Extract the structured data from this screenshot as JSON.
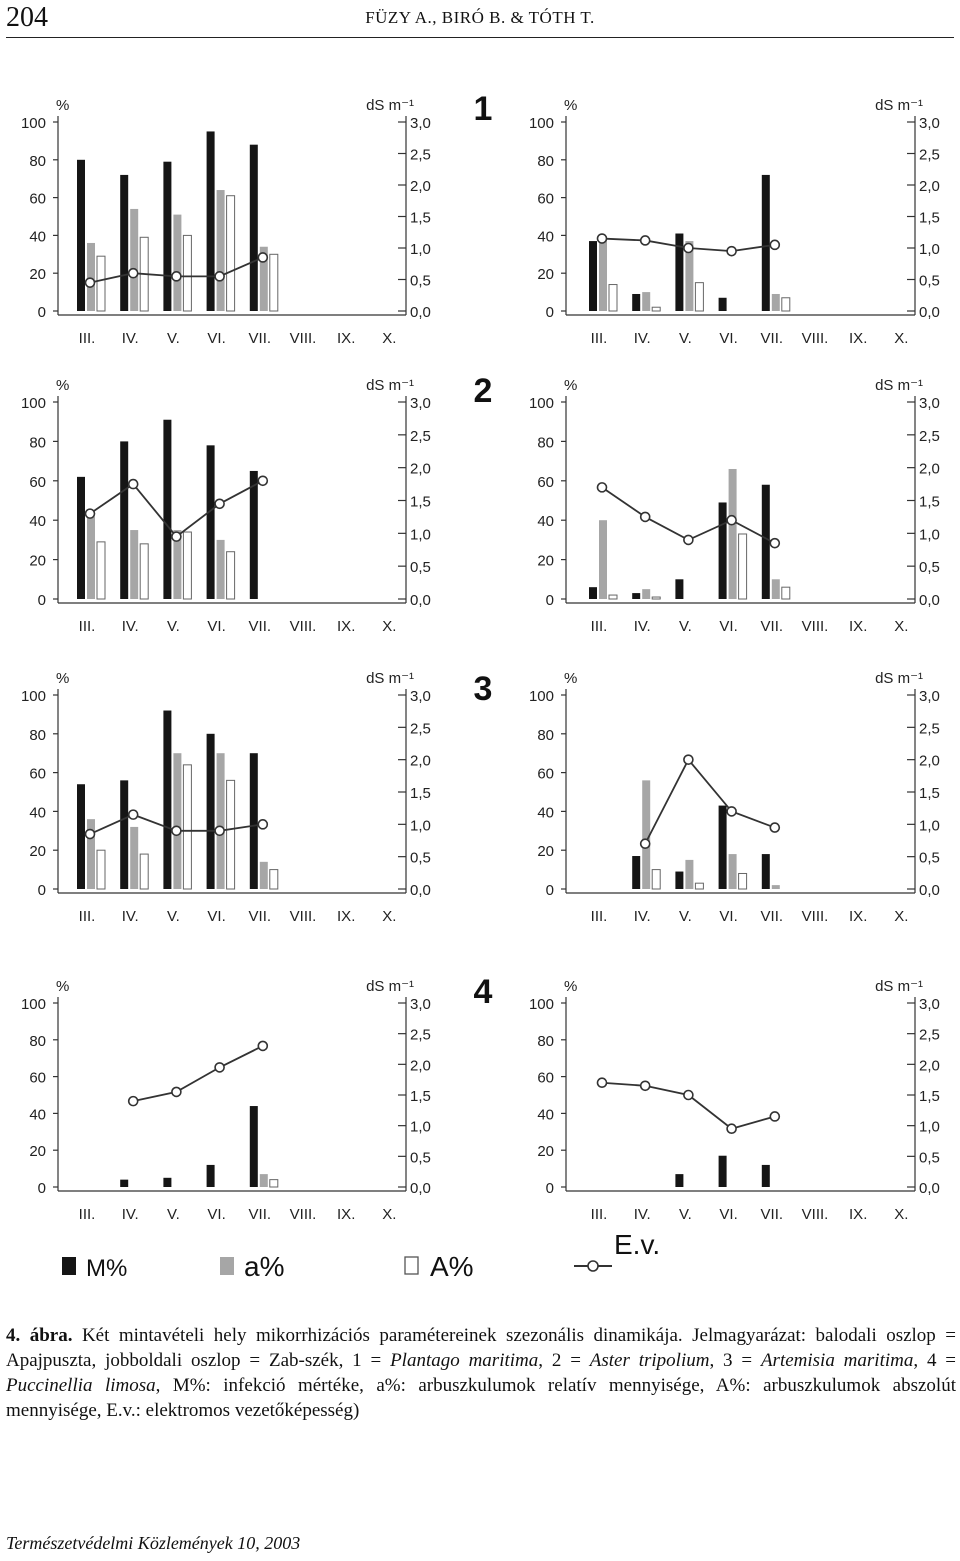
{
  "header": {
    "page_number": "204",
    "running_head": "FÜZY A., BIRÓ B. & TÓTH T."
  },
  "figure": {
    "legend": {
      "m_label": "M%",
      "a_label": "a%",
      "abs_label": "A%",
      "ev_label": "E.v."
    },
    "colors": {
      "m": "#151515",
      "a": "#a6a6a6",
      "abs": "#ffffff",
      "line": "#333333"
    }
  },
  "chart_data": [
    {
      "type": "bar",
      "row": "1",
      "column": "left",
      "categories": [
        "III.",
        "IV.",
        "V.",
        "VI.",
        "VII.",
        "VIII.",
        "IX.",
        "X."
      ],
      "y_unit": "%",
      "y2_unit": "dS m⁻¹",
      "ylim": [
        0,
        100
      ],
      "y2lim": [
        0,
        3.0
      ],
      "yticks": [
        "0",
        "20",
        "40",
        "60",
        "80",
        "100"
      ],
      "y2ticks": [
        "0,0",
        "0,5",
        "1,0",
        "1,5",
        "2,0",
        "2,5",
        "3,0"
      ],
      "series": [
        {
          "name": "M%",
          "values": [
            80,
            72,
            79,
            95,
            88,
            null,
            null,
            null
          ]
        },
        {
          "name": "a%",
          "values": [
            36,
            54,
            51,
            64,
            34,
            null,
            null,
            null
          ]
        },
        {
          "name": "A%",
          "values": [
            29,
            39,
            40,
            61,
            30,
            null,
            null,
            null
          ]
        },
        {
          "name": "E.v.",
          "type": "line",
          "axis": "right",
          "values": [
            0.45,
            0.6,
            0.55,
            0.55,
            0.85,
            null,
            null,
            null
          ]
        }
      ]
    },
    {
      "type": "bar",
      "row": "1",
      "column": "right",
      "categories": [
        "III.",
        "IV.",
        "V.",
        "VI.",
        "VII.",
        "VIII.",
        "IX.",
        "X."
      ],
      "y_unit": "%",
      "y2_unit": "dS m⁻¹",
      "ylim": [
        0,
        100
      ],
      "y2lim": [
        0,
        3.0
      ],
      "yticks": [
        "0",
        "20",
        "40",
        "60",
        "80",
        "100"
      ],
      "y2ticks": [
        "0,0",
        "0,5",
        "1,0",
        "1,5",
        "2,0",
        "2,5",
        "3,0"
      ],
      "series": [
        {
          "name": "M%",
          "values": [
            37,
            9,
            41,
            7,
            72,
            null,
            null,
            null
          ]
        },
        {
          "name": "a%",
          "values": [
            39,
            10,
            37,
            0,
            9,
            null,
            null,
            null
          ]
        },
        {
          "name": "A%",
          "values": [
            14,
            2,
            15,
            0,
            7,
            null,
            null,
            null
          ]
        },
        {
          "name": "E.v.",
          "type": "line",
          "axis": "right",
          "values": [
            1.15,
            1.12,
            1.0,
            0.95,
            1.05,
            null,
            null,
            null
          ]
        }
      ]
    },
    {
      "type": "bar",
      "row": "2",
      "column": "left",
      "categories": [
        "III.",
        "IV.",
        "V.",
        "VI.",
        "VII.",
        "VIII.",
        "IX.",
        "X."
      ],
      "y_unit": "%",
      "y2_unit": "dS m⁻¹",
      "ylim": [
        0,
        100
      ],
      "y2lim": [
        0,
        3.0
      ],
      "yticks": [
        "0",
        "20",
        "40",
        "60",
        "80",
        "100"
      ],
      "y2ticks": [
        "0,0",
        "0,5",
        "1,0",
        "1,5",
        "2,0",
        "2,5",
        "3,0"
      ],
      "series": [
        {
          "name": "M%",
          "values": [
            62,
            80,
            91,
            78,
            65,
            null,
            null,
            null
          ]
        },
        {
          "name": "a%",
          "values": [
            42,
            35,
            35,
            30,
            0,
            null,
            null,
            null
          ]
        },
        {
          "name": "A%",
          "values": [
            29,
            28,
            34,
            24,
            0,
            null,
            null,
            null
          ]
        },
        {
          "name": "E.v.",
          "type": "line",
          "axis": "right",
          "values": [
            1.3,
            1.75,
            0.95,
            1.45,
            1.8,
            null,
            null,
            null
          ]
        }
      ]
    },
    {
      "type": "bar",
      "row": "2",
      "column": "right",
      "categories": [
        "III.",
        "IV.",
        "V.",
        "VI.",
        "VII.",
        "VIII.",
        "IX.",
        "X."
      ],
      "y_unit": "%",
      "y2_unit": "dS m⁻¹",
      "ylim": [
        0,
        100
      ],
      "y2lim": [
        0,
        3.0
      ],
      "yticks": [
        "0",
        "20",
        "40",
        "60",
        "80",
        "100"
      ],
      "y2ticks": [
        "0,0",
        "0,5",
        "1,0",
        "1,5",
        "2,0",
        "2,5",
        "3,0"
      ],
      "series": [
        {
          "name": "M%",
          "values": [
            6,
            3,
            10,
            49,
            58,
            null,
            null,
            null
          ]
        },
        {
          "name": "a%",
          "values": [
            40,
            5,
            0,
            66,
            10,
            null,
            null,
            null
          ]
        },
        {
          "name": "A%",
          "values": [
            2,
            1,
            0,
            33,
            6,
            null,
            null,
            null
          ]
        },
        {
          "name": "E.v.",
          "type": "line",
          "axis": "right",
          "values": [
            1.7,
            1.25,
            0.9,
            1.2,
            0.85,
            null,
            null,
            null
          ]
        }
      ]
    },
    {
      "type": "bar",
      "row": "3",
      "column": "left",
      "categories": [
        "III.",
        "IV.",
        "V.",
        "VI.",
        "VII.",
        "VIII.",
        "IX.",
        "X."
      ],
      "y_unit": "%",
      "y2_unit": "dS m⁻¹",
      "ylim": [
        0,
        100
      ],
      "y2lim": [
        0,
        3.0
      ],
      "yticks": [
        "0",
        "20",
        "40",
        "60",
        "80",
        "100"
      ],
      "y2ticks": [
        "0,0",
        "0,5",
        "1,0",
        "1,5",
        "2,0",
        "2,5",
        "3,0"
      ],
      "series": [
        {
          "name": "M%",
          "values": [
            54,
            56,
            92,
            80,
            70,
            null,
            null,
            null
          ]
        },
        {
          "name": "a%",
          "values": [
            36,
            32,
            70,
            70,
            14,
            null,
            null,
            null
          ]
        },
        {
          "name": "A%",
          "values": [
            20,
            18,
            64,
            56,
            10,
            null,
            null,
            null
          ]
        },
        {
          "name": "E.v.",
          "type": "line",
          "axis": "right",
          "values": [
            0.85,
            1.15,
            0.9,
            0.9,
            1.0,
            null,
            null,
            null
          ]
        }
      ]
    },
    {
      "type": "bar",
      "row": "3",
      "column": "right",
      "categories": [
        "III.",
        "IV.",
        "V.",
        "VI.",
        "VII.",
        "VIII.",
        "IX.",
        "X."
      ],
      "y_unit": "%",
      "y2_unit": "dS m⁻¹",
      "ylim": [
        0,
        100
      ],
      "y2lim": [
        0,
        3.0
      ],
      "yticks": [
        "0",
        "20",
        "40",
        "60",
        "80",
        "100"
      ],
      "y2ticks": [
        "0,0",
        "0,5",
        "1,0",
        "1,5",
        "2,0",
        "2,5",
        "3,0"
      ],
      "series": [
        {
          "name": "M%",
          "values": [
            null,
            17,
            9,
            43,
            18,
            null,
            null,
            null
          ]
        },
        {
          "name": "a%",
          "values": [
            null,
            56,
            15,
            18,
            2,
            null,
            null,
            null
          ]
        },
        {
          "name": "A%",
          "values": [
            null,
            10,
            3,
            8,
            0,
            null,
            null,
            null
          ]
        },
        {
          "name": "E.v.",
          "type": "line",
          "axis": "right",
          "values": [
            null,
            0.7,
            2.0,
            1.2,
            0.95,
            null,
            null,
            null
          ]
        }
      ]
    },
    {
      "type": "bar",
      "row": "4",
      "column": "left",
      "categories": [
        "III.",
        "IV.",
        "V.",
        "VI.",
        "VII.",
        "VIII.",
        "IX.",
        "X."
      ],
      "y_unit": "%",
      "y2_unit": "dS m⁻¹",
      "ylim": [
        0,
        100
      ],
      "y2lim": [
        0,
        3.0
      ],
      "yticks": [
        "0",
        "20",
        "40",
        "60",
        "80",
        "100"
      ],
      "y2ticks": [
        "0,0",
        "0,5",
        "1,0",
        "1,5",
        "2,0",
        "2,5",
        "3,0"
      ],
      "series": [
        {
          "name": "M%",
          "values": [
            null,
            4,
            5,
            12,
            44,
            null,
            null,
            null
          ]
        },
        {
          "name": "a%",
          "values": [
            null,
            0,
            0,
            0,
            7,
            null,
            null,
            null
          ]
        },
        {
          "name": "A%",
          "values": [
            null,
            0,
            0,
            0,
            4,
            null,
            null,
            null
          ]
        },
        {
          "name": "E.v.",
          "type": "line",
          "axis": "right",
          "values": [
            null,
            1.4,
            1.55,
            1.95,
            2.3,
            null,
            null,
            null
          ]
        }
      ]
    },
    {
      "type": "bar",
      "row": "4",
      "column": "right",
      "categories": [
        "III.",
        "IV.",
        "V.",
        "VI.",
        "VII.",
        "VIII.",
        "IX.",
        "X."
      ],
      "y_unit": "%",
      "y2_unit": "dS m⁻¹",
      "ylim": [
        0,
        100
      ],
      "y2lim": [
        0,
        3.0
      ],
      "yticks": [
        "0",
        "20",
        "40",
        "60",
        "80",
        "100"
      ],
      "y2ticks": [
        "0,0",
        "0,5",
        "1,0",
        "1,5",
        "2,0",
        "2,5",
        "3,0"
      ],
      "series": [
        {
          "name": "M%",
          "values": [
            null,
            null,
            7,
            17,
            12,
            null,
            null,
            null
          ]
        },
        {
          "name": "a%",
          "values": [
            null,
            null,
            0,
            0,
            0,
            null,
            null,
            null
          ]
        },
        {
          "name": "A%",
          "values": [
            null,
            null,
            0,
            0,
            0,
            null,
            null,
            null
          ]
        },
        {
          "name": "E.v.",
          "type": "line",
          "axis": "right",
          "values": [
            1.7,
            1.65,
            1.5,
            0.95,
            1.15,
            null,
            null,
            null
          ]
        }
      ]
    }
  ],
  "caption": {
    "label": "4. ábra.",
    "parts": [
      {
        "text": " Két mintavételi hely mikorrhizációs paramétereinek szezonális dinamikája. Jelmagyarázat: balodali oszlop = Apajpuszta, jobboldali oszlop = Zab-szék, 1 = ",
        "italic": false
      },
      {
        "text": "Plantago maritima",
        "italic": true
      },
      {
        "text": ", 2 = ",
        "italic": false
      },
      {
        "text": "Aster tripolium",
        "italic": true
      },
      {
        "text": ", 3 = ",
        "italic": false
      },
      {
        "text": "Artemisia maritima",
        "italic": true
      },
      {
        "text": ", 4 = ",
        "italic": false
      },
      {
        "text": "Puccinellia limosa",
        "italic": true
      },
      {
        "text": ", M%: infekció mértéke, a%: arbuszkulumok relatív mennyisége, A%: arbuszkulumok abszolút mennyisége, E.v.: elektromos vezetőképesség)",
        "italic": false
      }
    ]
  },
  "footer": {
    "journal": "Természetvédelmi Közlemények 10, 2003"
  }
}
